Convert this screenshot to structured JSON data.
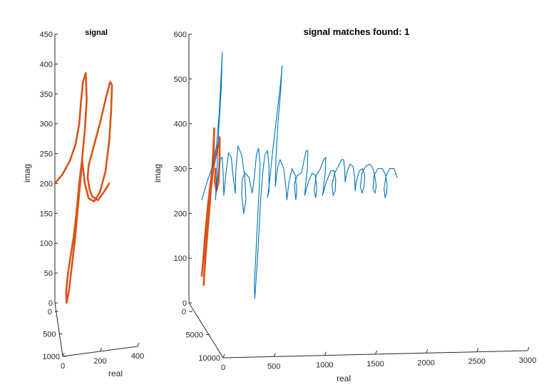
{
  "chart_data": [
    {
      "type": "line",
      "title": "signal",
      "xlabel": "real",
      "ylabel": "imag",
      "zlabel": "",
      "x_ticks": [
        "0",
        "200",
        "400"
      ],
      "z_ticks": [
        "0",
        "500",
        "1000"
      ],
      "y_ticks": [
        "0",
        "50",
        "100",
        "150",
        "200",
        "250",
        "300",
        "350",
        "400",
        "450"
      ],
      "xlim": [
        0,
        400
      ],
      "ylim": [
        0,
        450
      ],
      "zlim": [
        0,
        1000
      ],
      "series": [
        {
          "color": "#d95319",
          "points": [
            [
              0,
              200
            ],
            [
              40,
              215
            ],
            [
              80,
              238
            ],
            [
              110,
              265
            ],
            [
              130,
              300
            ],
            [
              140,
              340
            ],
            [
              150,
              370
            ],
            [
              165,
              385
            ],
            [
              170,
              340
            ],
            [
              160,
              290
            ],
            [
              145,
              240
            ],
            [
              130,
              200
            ],
            [
              115,
              150
            ],
            [
              100,
              110
            ],
            [
              85,
              80
            ],
            [
              70,
              50
            ],
            [
              60,
              20
            ],
            [
              62,
              0
            ],
            [
              75,
              20
            ],
            [
              90,
              60
            ],
            [
              105,
              100
            ],
            [
              120,
              150
            ],
            [
              135,
              200
            ],
            [
              145,
              240
            ],
            [
              160,
              200
            ],
            [
              180,
              175
            ],
            [
              210,
              170
            ],
            [
              240,
              185
            ],
            [
              270,
              220
            ],
            [
              290,
              270
            ],
            [
              300,
              320
            ],
            [
              305,
              365
            ],
            [
              295,
              370
            ],
            [
              270,
              340
            ],
            [
              240,
              300
            ],
            [
              210,
              265
            ],
            [
              180,
              230
            ],
            [
              175,
              210
            ],
            [
              185,
              190
            ],
            [
              200,
              178
            ],
            [
              230,
              172
            ],
            [
              260,
              185
            ],
            [
              290,
              200
            ]
          ]
        }
      ]
    },
    {
      "type": "line",
      "title": "signal matches found: 1",
      "xlabel": "real",
      "ylabel": "imag",
      "zlabel": "",
      "x_ticks": [
        "0",
        "500",
        "1000",
        "1500",
        "2000",
        "2500",
        "3000"
      ],
      "z_ticks": [
        "0",
        "5000",
        "10000"
      ],
      "y_ticks": [
        "0",
        "100",
        "200",
        "300",
        "400",
        "500",
        "600"
      ],
      "xlim": [
        0,
        3000
      ],
      "ylim": [
        0,
        600
      ],
      "zlim": [
        0,
        10000
      ],
      "series": [
        {
          "color": "#d95319",
          "points": [
            [
              0,
              60
            ],
            [
              15,
              100
            ],
            [
              35,
              160
            ],
            [
              60,
              220
            ],
            [
              85,
              270
            ],
            [
              100,
              300
            ],
            [
              115,
              340
            ],
            [
              118,
              390
            ],
            [
              110,
              340
            ],
            [
              92,
              270
            ],
            [
              70,
              200
            ],
            [
              45,
              130
            ],
            [
              25,
              70
            ],
            [
              18,
              40
            ],
            [
              35,
              110
            ],
            [
              55,
              170
            ],
            [
              75,
              230
            ],
            [
              90,
              260
            ],
            [
              110,
              300
            ],
            [
              135,
              330
            ],
            [
              170,
              370
            ],
            [
              170,
              320
            ],
            [
              160,
              270
            ],
            [
              140,
              250
            ],
            [
              125,
              270
            ],
            [
              130,
              300
            ]
          ]
        },
        {
          "color": "#0072bd",
          "points": [
            [
              0,
              230
            ],
            [
              50,
              270
            ],
            [
              95,
              300
            ],
            [
              140,
              350
            ],
            [
              165,
              420
            ],
            [
              180,
              490
            ],
            [
              195,
              560
            ],
            [
              185,
              480
            ],
            [
              165,
              400
            ],
            [
              150,
              330
            ],
            [
              140,
              270
            ],
            [
              130,
              230
            ],
            [
              150,
              280
            ],
            [
              175,
              320
            ],
            [
              195,
              325
            ],
            [
              205,
              280
            ],
            [
              210,
              240
            ],
            [
              230,
              290
            ],
            [
              255,
              335
            ],
            [
              280,
              325
            ],
            [
              300,
              280
            ],
            [
              320,
              245
            ],
            [
              325,
              300
            ],
            [
              345,
              350
            ],
            [
              380,
              330
            ],
            [
              410,
              280
            ],
            [
              420,
              230
            ],
            [
              400,
              200
            ],
            [
              380,
              240
            ],
            [
              385,
              275
            ],
            [
              410,
              290
            ],
            [
              450,
              280
            ],
            [
              480,
              245
            ],
            [
              500,
              280
            ],
            [
              520,
              330
            ],
            [
              540,
              345
            ],
            [
              555,
              310
            ],
            [
              545,
              250
            ],
            [
              530,
              180
            ],
            [
              515,
              110
            ],
            [
              500,
              40
            ],
            [
              505,
              10
            ],
            [
              525,
              80
            ],
            [
              545,
              160
            ],
            [
              560,
              230
            ],
            [
              580,
              290
            ],
            [
              600,
              330
            ],
            [
              625,
              340
            ],
            [
              640,
              305
            ],
            [
              640,
              250
            ],
            [
              625,
              235
            ],
            [
              645,
              270
            ],
            [
              680,
              350
            ],
            [
              720,
              430
            ],
            [
              750,
              490
            ],
            [
              765,
              530
            ],
            [
              750,
              470
            ],
            [
              725,
              400
            ],
            [
              705,
              320
            ],
            [
              700,
              260
            ],
            [
              720,
              300
            ],
            [
              745,
              320
            ],
            [
              780,
              300
            ],
            [
              800,
              260
            ],
            [
              810,
              230
            ],
            [
              830,
              270
            ],
            [
              860,
              300
            ],
            [
              890,
              285
            ],
            [
              905,
              250
            ],
            [
              895,
              230
            ],
            [
              880,
              265
            ],
            [
              910,
              285
            ],
            [
              950,
              290
            ],
            [
              975,
              320
            ],
            [
              995,
              340
            ],
            [
              1010,
              340
            ],
            [
              1005,
              300
            ],
            [
              985,
              255
            ],
            [
              980,
              240
            ],
            [
              1015,
              270
            ],
            [
              1050,
              290
            ],
            [
              1080,
              285
            ],
            [
              1095,
              260
            ],
            [
              1085,
              235
            ],
            [
              1070,
              250
            ],
            [
              1090,
              285
            ],
            [
              1130,
              300
            ],
            [
              1160,
              320
            ],
            [
              1180,
              325
            ],
            [
              1175,
              290
            ],
            [
              1155,
              250
            ],
            [
              1150,
              240
            ],
            [
              1185,
              270
            ],
            [
              1230,
              295
            ],
            [
              1260,
              295
            ],
            [
              1275,
              275
            ],
            [
              1270,
              250
            ],
            [
              1250,
              240
            ],
            [
              1240,
              265
            ],
            [
              1265,
              290
            ],
            [
              1300,
              305
            ],
            [
              1330,
              320
            ],
            [
              1350,
              320
            ],
            [
              1360,
              300
            ],
            [
              1365,
              270
            ],
            [
              1380,
              290
            ],
            [
              1410,
              310
            ],
            [
              1440,
              305
            ],
            [
              1455,
              280
            ],
            [
              1460,
              250
            ],
            [
              1470,
              270
            ],
            [
              1500,
              295
            ],
            [
              1530,
              300
            ],
            [
              1550,
              285
            ],
            [
              1545,
              260
            ],
            [
              1525,
              245
            ],
            [
              1510,
              260
            ],
            [
              1525,
              290
            ],
            [
              1560,
              305
            ],
            [
              1600,
              310
            ],
            [
              1630,
              300
            ],
            [
              1650,
              280
            ],
            [
              1660,
              260
            ],
            [
              1650,
              245
            ],
            [
              1630,
              255
            ],
            [
              1640,
              285
            ],
            [
              1680,
              300
            ],
            [
              1720,
              300
            ],
            [
              1750,
              285
            ],
            [
              1765,
              265
            ],
            [
              1760,
              245
            ],
            [
              1745,
              235
            ],
            [
              1735,
              255
            ],
            [
              1755,
              285
            ],
            [
              1790,
              300
            ],
            [
              1830,
              300
            ],
            [
              1860,
              280
            ]
          ]
        }
      ]
    }
  ]
}
